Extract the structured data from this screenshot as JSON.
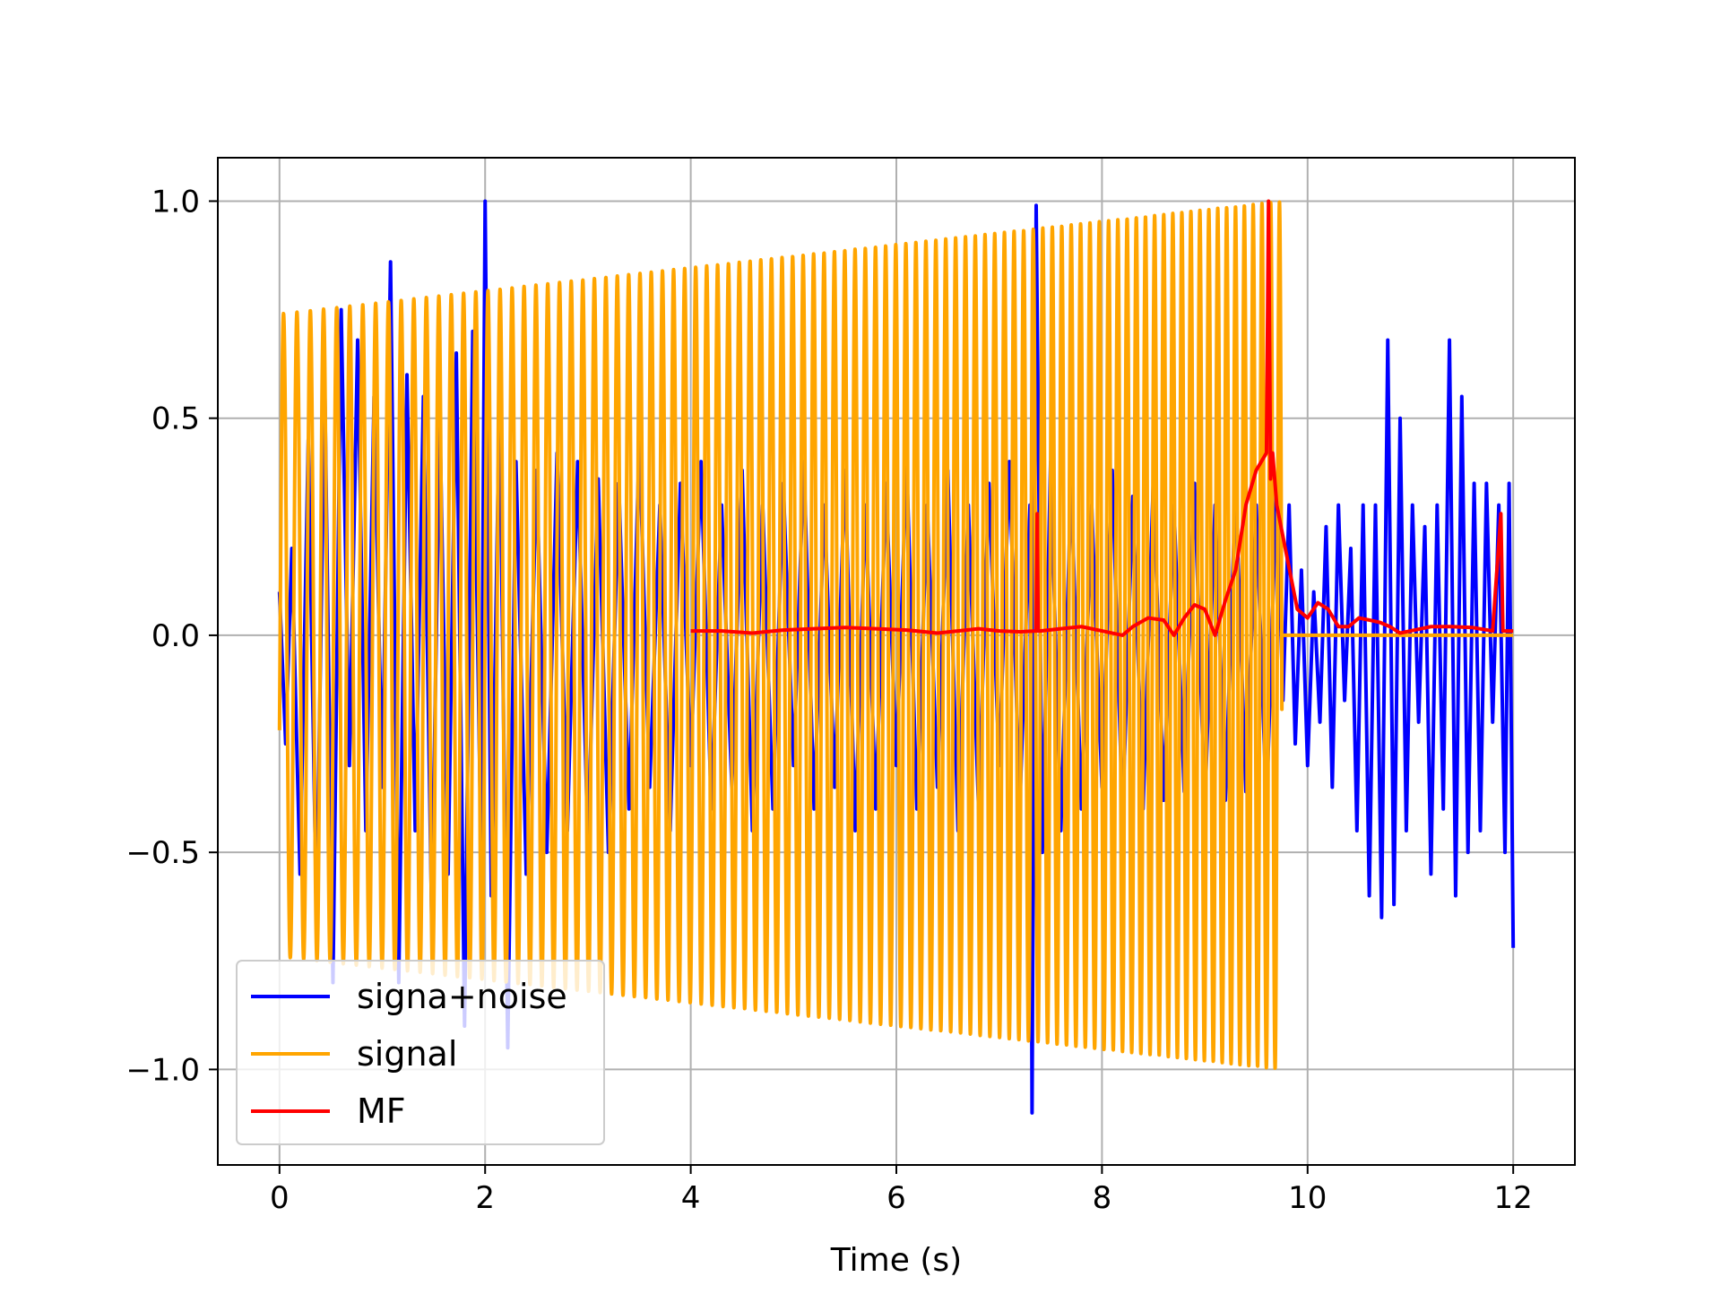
{
  "chart_data": {
    "type": "line",
    "title": "",
    "xlabel": "Time (s)",
    "ylabel": "",
    "xlim": [
      -0.6,
      12.6
    ],
    "ylim": [
      -1.22,
      1.1
    ],
    "xticks": [
      0,
      2,
      4,
      6,
      8,
      10,
      12
    ],
    "xtick_labels": [
      "0",
      "2",
      "4",
      "6",
      "8",
      "10",
      "12"
    ],
    "yticks": [
      -1.0,
      -0.5,
      0.0,
      0.5,
      1.0
    ],
    "ytick_labels": [
      "−1.0",
      "−0.5",
      "0.0",
      "0.5",
      "1.0"
    ],
    "grid": true,
    "legend_position": "lower-left",
    "series": [
      {
        "name": "signa+noise",
        "color": "#0000ff",
        "x": [
          0.0,
          0.06,
          0.12,
          0.2,
          0.28,
          0.36,
          0.44,
          0.52,
          0.6,
          0.68,
          0.76,
          0.84,
          0.92,
          1.0,
          1.08,
          1.16,
          1.24,
          1.32,
          1.4,
          1.48,
          1.56,
          1.64,
          1.72,
          1.8,
          1.88,
          1.96,
          2.0,
          2.06,
          2.14,
          2.22,
          2.3,
          2.4,
          2.5,
          2.6,
          2.7,
          2.8,
          2.9,
          3.0,
          3.1,
          3.2,
          3.3,
          3.4,
          3.5,
          3.6,
          3.7,
          3.8,
          3.9,
          4.0,
          4.1,
          4.2,
          4.3,
          4.4,
          4.5,
          4.6,
          4.7,
          4.8,
          4.9,
          5.0,
          5.1,
          5.2,
          5.3,
          5.4,
          5.5,
          5.6,
          5.7,
          5.8,
          5.9,
          6.0,
          6.1,
          6.2,
          6.3,
          6.4,
          6.5,
          6.6,
          6.7,
          6.8,
          6.9,
          7.0,
          7.1,
          7.2,
          7.3,
          7.32,
          7.36,
          7.42,
          7.5,
          7.6,
          7.7,
          7.8,
          7.9,
          8.0,
          8.1,
          8.2,
          8.3,
          8.4,
          8.5,
          8.6,
          8.7,
          8.8,
          8.9,
          9.0,
          9.1,
          9.2,
          9.3,
          9.4,
          9.5,
          9.6,
          9.7,
          9.76,
          9.82,
          9.88,
          9.94,
          10.0,
          10.06,
          10.12,
          10.18,
          10.24,
          10.3,
          10.36,
          10.42,
          10.48,
          10.54,
          10.6,
          10.66,
          10.72,
          10.78,
          10.84,
          10.9,
          10.96,
          11.02,
          11.08,
          11.14,
          11.2,
          11.26,
          11.32,
          11.38,
          11.44,
          11.5,
          11.56,
          11.62,
          11.68,
          11.74,
          11.8,
          11.86,
          11.92,
          11.96,
          12.0
        ],
        "y": [
          0.1,
          -0.25,
          0.2,
          -0.55,
          0.45,
          -0.65,
          0.58,
          -0.8,
          0.75,
          -0.3,
          0.68,
          -0.45,
          0.55,
          -0.35,
          0.86,
          -0.8,
          0.6,
          -0.45,
          0.55,
          -0.65,
          0.5,
          -0.55,
          0.65,
          -0.9,
          0.7,
          -0.5,
          1.0,
          -0.6,
          0.55,
          -0.95,
          0.4,
          -0.55,
          0.38,
          -0.5,
          0.42,
          -0.45,
          0.4,
          -0.48,
          0.36,
          -0.5,
          0.35,
          -0.4,
          0.45,
          -0.35,
          0.3,
          -0.45,
          0.35,
          -0.3,
          0.4,
          -0.4,
          0.3,
          -0.35,
          0.38,
          -0.45,
          0.3,
          -0.4,
          0.35,
          -0.3,
          0.4,
          -0.4,
          0.3,
          -0.35,
          0.38,
          -0.45,
          0.3,
          -0.4,
          0.35,
          -0.3,
          0.4,
          -0.4,
          0.3,
          -0.35,
          0.38,
          -0.45,
          0.3,
          -0.4,
          0.35,
          -0.3,
          0.4,
          -0.4,
          0.3,
          -1.1,
          0.99,
          -0.5,
          0.4,
          -0.45,
          0.35,
          -0.4,
          0.3,
          -0.35,
          0.38,
          -0.42,
          0.32,
          -0.4,
          0.36,
          -0.38,
          0.3,
          -0.36,
          0.35,
          -0.4,
          0.3,
          -0.38,
          0.34,
          -0.36,
          0.3,
          -0.4,
          0.36,
          -0.15,
          0.3,
          -0.25,
          0.15,
          -0.3,
          0.1,
          -0.2,
          0.25,
          -0.35,
          0.3,
          -0.15,
          0.2,
          -0.45,
          0.3,
          -0.6,
          0.3,
          -0.65,
          0.68,
          -0.62,
          0.5,
          -0.45,
          0.3,
          -0.2,
          0.25,
          -0.55,
          0.3,
          -0.4,
          0.68,
          -0.6,
          0.55,
          -0.5,
          0.35,
          -0.45,
          0.35,
          -0.2,
          0.3,
          -0.5,
          0.35,
          -0.72
        ]
      },
      {
        "name": "signal",
        "color": "#ffa500",
        "x_start": 0.0,
        "x_end": 9.75,
        "amplitude_start": 0.74,
        "amplitude_end": 1.0,
        "cycles": 95,
        "after_end_value": 0.0,
        "x_after_end": 12.0
      },
      {
        "name": "MF",
        "color": "#ff0000",
        "x": [
          4.0,
          4.3,
          4.6,
          4.9,
          5.2,
          5.5,
          5.8,
          6.1,
          6.4,
          6.6,
          6.8,
          7.0,
          7.2,
          7.36,
          7.37,
          7.38,
          7.4,
          7.6,
          7.8,
          8.0,
          8.2,
          8.3,
          8.45,
          8.6,
          8.7,
          8.8,
          8.9,
          9.0,
          9.1,
          9.2,
          9.3,
          9.4,
          9.5,
          9.6,
          9.62,
          9.64,
          9.66,
          9.7,
          9.8,
          9.9,
          10.0,
          10.1,
          10.2,
          10.3,
          10.4,
          10.5,
          10.6,
          10.7,
          10.8,
          10.9,
          11.0,
          11.1,
          11.2,
          11.4,
          11.6,
          11.8,
          11.88,
          11.9,
          11.92,
          12.0
        ],
        "y": [
          0.01,
          0.01,
          0.005,
          0.012,
          0.015,
          0.018,
          0.015,
          0.012,
          0.005,
          0.01,
          0.015,
          0.01,
          0.008,
          0.01,
          0.28,
          0.01,
          0.01,
          0.015,
          0.02,
          0.01,
          0.0,
          0.02,
          0.04,
          0.035,
          0.0,
          0.04,
          0.07,
          0.06,
          0.0,
          0.08,
          0.15,
          0.3,
          0.38,
          0.42,
          1.0,
          0.36,
          0.42,
          0.3,
          0.18,
          0.06,
          0.04,
          0.075,
          0.06,
          0.02,
          0.02,
          0.04,
          0.035,
          0.03,
          0.02,
          0.005,
          0.01,
          0.015,
          0.02,
          0.02,
          0.018,
          0.01,
          0.28,
          0.01,
          0.01,
          0.01
        ]
      }
    ]
  }
}
